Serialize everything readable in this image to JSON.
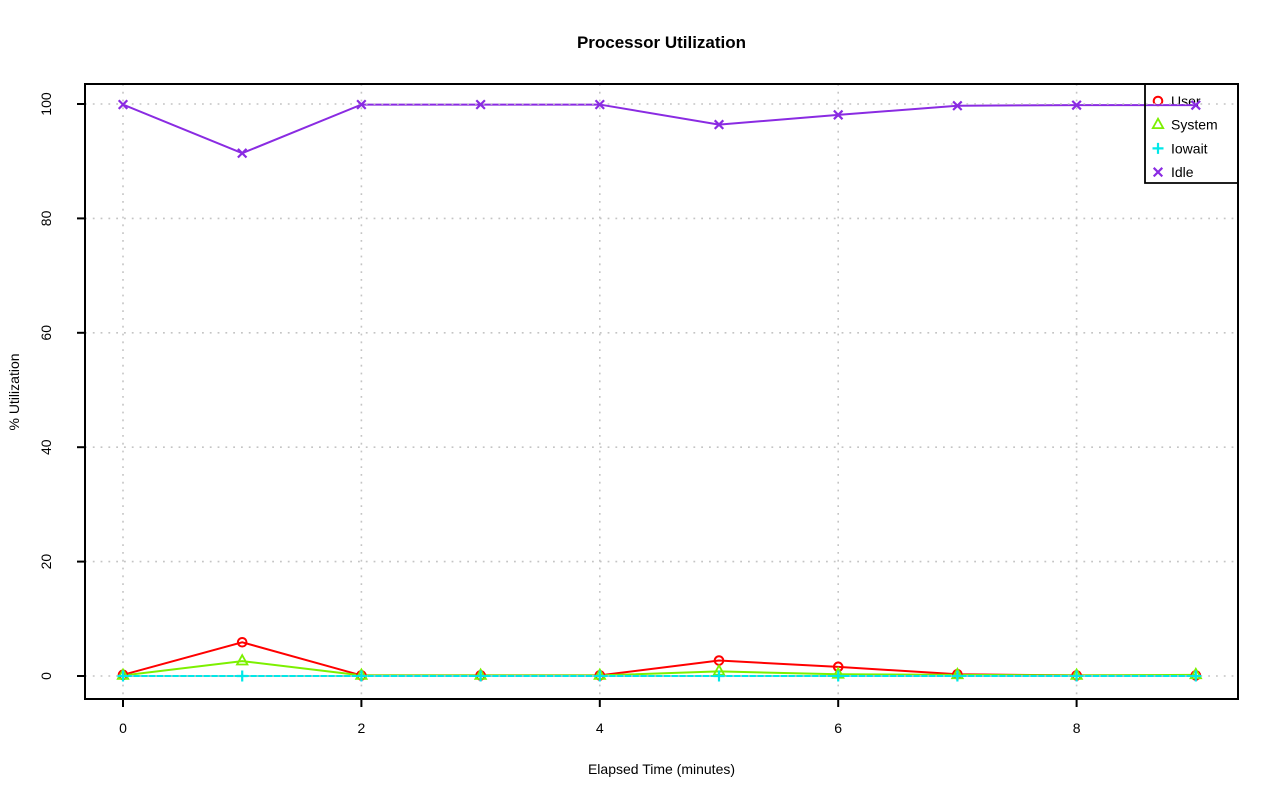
{
  "chart_data": {
    "type": "line",
    "title": "Processor Utilization",
    "xlabel": "Elapsed Time (minutes)",
    "ylabel": "% Utilization",
    "x": [
      0,
      1,
      2,
      3,
      4,
      5,
      6,
      7,
      8,
      9
    ],
    "xticks": [
      "0",
      "2",
      "4",
      "6",
      "8"
    ],
    "xtick_values": [
      0,
      2,
      4,
      6,
      8
    ],
    "yticks": [
      "0",
      "20",
      "40",
      "60",
      "80",
      "100"
    ],
    "ytick_values": [
      0,
      20,
      40,
      60,
      80,
      100
    ],
    "xlim": [
      -0.32,
      9.35
    ],
    "ylim": [
      -4,
      104
    ],
    "grid": "dotted",
    "legend_position": "top-right",
    "series": [
      {
        "name": "User",
        "color": "#FF0000",
        "marker": "circle",
        "values": [
          0.2,
          5.9,
          0.1,
          0.1,
          0.1,
          2.7,
          1.6,
          0.3,
          0.1,
          0.1
        ]
      },
      {
        "name": "System",
        "color": "#7CF000",
        "marker": "triangle",
        "values": [
          0.1,
          2.6,
          0.1,
          0.1,
          0.1,
          0.8,
          0.3,
          0.2,
          0.1,
          0.2
        ]
      },
      {
        "name": "Iowait",
        "color": "#00E8E8",
        "marker": "plus",
        "values": [
          0,
          0,
          0,
          0,
          0,
          0,
          0,
          0,
          0,
          0
        ]
      },
      {
        "name": "Idle",
        "color": "#8A2BE2",
        "marker": "x",
        "values": [
          99.9,
          91.4,
          99.9,
          99.9,
          99.9,
          96.4,
          98.1,
          99.7,
          99.8,
          99.8
        ]
      }
    ],
    "colors": {
      "grid": "#C4C4C4",
      "axis": "#000000",
      "background": "#FFFFFF"
    }
  }
}
